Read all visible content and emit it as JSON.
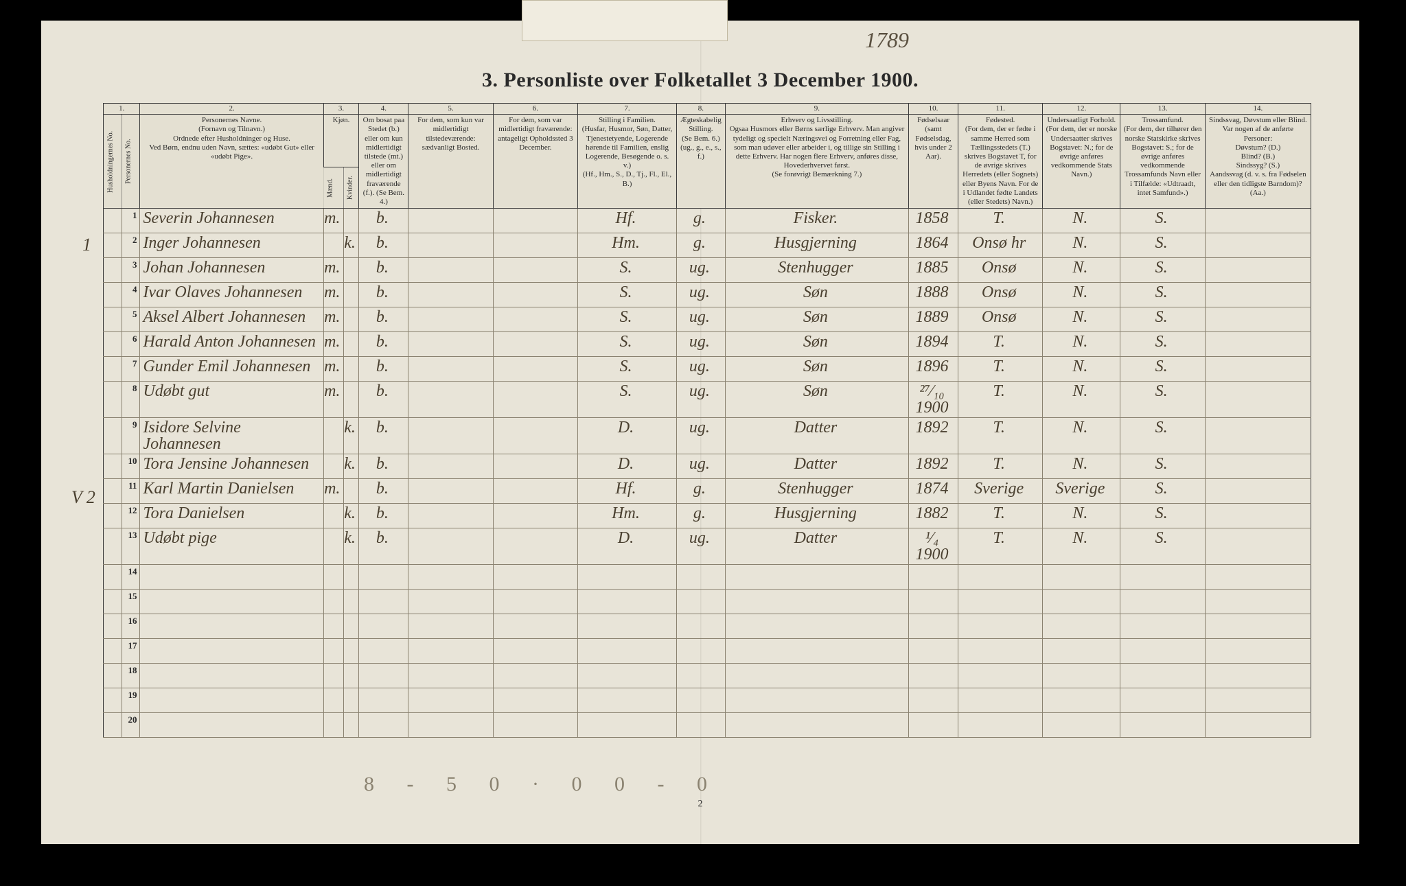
{
  "page": {
    "top_pagenum": "1789",
    "title": "3. Personliste over Folketallet 3 December 1900.",
    "foot_hand": "8 - 5   0 · 0   0 - 0",
    "foot_pagenum": "2"
  },
  "colors": {
    "paper": "#e8e4d8",
    "ink_print": "#2a2a2a",
    "ink_hand": "#4a4030",
    "rule_light": "#8a8270",
    "background": "#000000"
  },
  "columns": {
    "nums": [
      "1.",
      "2.",
      "3.",
      "4.",
      "5.",
      "6.",
      "7.",
      "8.",
      "9.",
      "10.",
      "11.",
      "12.",
      "13.",
      "14."
    ],
    "headers": {
      "c1": "Husholdningernes No.",
      "c1b": "Personernes No.",
      "c2": "Personernes Navne.\n(Fornavn og Tilnavn.)\nOrdnede efter Husholdninger og Huse.\nVed Børn, endnu uden Navn, sættes: «udøbt Gut» eller «udøbt Pige».",
      "c3": "Kjøn.",
      "c3m": "Mænd.",
      "c3k": "Kvinder.",
      "c4": "Om bosat paa Stedet (b.) eller om kun midlertidigt tilstede (mt.) eller om midlertidigt fraværende (f.). (Se Bem. 4.)",
      "c5": "For dem, som kun var midlertidigt tilstedeværende:\nsædvanligt Bosted.",
      "c6": "For dem, som var midlertidigt fraværende:\nantageligt Opholdssted 3 December.",
      "c7": "Stilling i Familien.\n(Husfar, Husmor, Søn, Datter, Tjenestetyende, Logerende hørende til Familien, enslig Logerende, Besøgende o. s. v.)\n(Hf., Hm., S., D., Tj., Fl., El., B.)",
      "c8": "Ægteskabelig Stilling.\n(Se Bem. 6.)\n(ug., g., e., s., f.)",
      "c9": "Erhverv og Livsstilling.\nOgsaa Husmors eller Børns særlige Erhverv. Man angiver tydeligt og specielt Næringsvei og Forretning eller Fag, som man udøver eller arbeider i, og tillige sin Stilling i dette Erhverv. Har nogen flere Erhverv, anføres disse, Hovederhvervet først.\n(Se forøvrigt Bemærkning 7.)",
      "c10": "Fødselsaar\n(samt Fødselsdag, hvis under 2 Aar).",
      "c11": "Fødested.\n(For dem, der er fødte i samme Herred som Tællingsstedets (T.) skrives Bogstavet T, for de øvrige skrives Herredets (eller Sognets) eller Byens Navn. For de i Udlandet fødte Landets (eller Stedets) Navn.)",
      "c12": "Undersaatligt Forhold.\n(For dem, der er norske Undersaatter skrives Bogstavet: N.; for de øvrige anføres vedkommende Stats Navn.)",
      "c13": "Trossamfund.\n(For dem, der tilhører den norske Statskirke skrives Bogstavet: S.; for de øvrige anføres vedkommende Trossamfunds Navn eller i Tilfælde: «Udtraadt, intet Samfund».)",
      "c14": "Sindssvag, Døvstum eller Blind.\nVar nogen af de anførte Personer:\nDøvstum? (D.)\nBlind? (B.)\nSindssyg? (S.)\nAandssvag (d. v. s. fra Fødselen eller den tidligste Barndom)? (Aa.)"
    }
  },
  "margin": {
    "r1": "1",
    "r11": "V 2"
  },
  "rows": [
    {
      "n": "1",
      "name": "Severin Johannesen",
      "m": "m.",
      "k": "",
      "res": "b.",
      "c5": "",
      "c6": "",
      "fam": "Hf.",
      "civ": "g.",
      "occ": "Fisker.",
      "yr": "1858",
      "bp": "T.",
      "nat": "N.",
      "rel": "S.",
      "dis": ""
    },
    {
      "n": "2",
      "name": "Inger Johannesen",
      "m": "",
      "k": "k.",
      "res": "b.",
      "c5": "",
      "c6": "",
      "fam": "Hm.",
      "civ": "g.",
      "occ": "Husgjerning",
      "yr": "1864",
      "bp": "Onsø hr",
      "nat": "N.",
      "rel": "S.",
      "dis": ""
    },
    {
      "n": "3",
      "name": "Johan Johannesen",
      "m": "m.",
      "k": "",
      "res": "b.",
      "c5": "",
      "c6": "",
      "fam": "S.",
      "civ": "ug.",
      "occ": "Stenhugger",
      "yr": "1885",
      "bp": "Onsø",
      "nat": "N.",
      "rel": "S.",
      "dis": ""
    },
    {
      "n": "4",
      "name": "Ivar Olaves Johannesen",
      "m": "m.",
      "k": "",
      "res": "b.",
      "c5": "",
      "c6": "",
      "fam": "S.",
      "civ": "ug.",
      "occ": "Søn",
      "yr": "1888",
      "bp": "Onsø",
      "nat": "N.",
      "rel": "S.",
      "dis": ""
    },
    {
      "n": "5",
      "name": "Aksel Albert Johannesen",
      "m": "m.",
      "k": "",
      "res": "b.",
      "c5": "",
      "c6": "",
      "fam": "S.",
      "civ": "ug.",
      "occ": "Søn",
      "yr": "1889",
      "bp": "Onsø",
      "nat": "N.",
      "rel": "S.",
      "dis": ""
    },
    {
      "n": "6",
      "name": "Harald Anton Johannesen",
      "m": "m.",
      "k": "",
      "res": "b.",
      "c5": "",
      "c6": "",
      "fam": "S.",
      "civ": "ug.",
      "occ": "Søn",
      "yr": "1894",
      "bp": "T.",
      "nat": "N.",
      "rel": "S.",
      "dis": ""
    },
    {
      "n": "7",
      "name": "Gunder Emil Johannesen",
      "m": "m.",
      "k": "",
      "res": "b.",
      "c5": "",
      "c6": "",
      "fam": "S.",
      "civ": "ug.",
      "occ": "Søn",
      "yr": "1896",
      "bp": "T.",
      "nat": "N.",
      "rel": "S.",
      "dis": ""
    },
    {
      "n": "8",
      "name": "Udøbt gut",
      "m": "m.",
      "k": "",
      "res": "b.",
      "c5": "",
      "c6": "",
      "fam": "S.",
      "civ": "ug.",
      "occ": "Søn",
      "yr": "²⁷⁄₁₀ 1900",
      "bp": "T.",
      "nat": "N.",
      "rel": "S.",
      "dis": ""
    },
    {
      "n": "9",
      "name": "Isidore Selvine Johannesen",
      "m": "",
      "k": "k.",
      "res": "b.",
      "c5": "",
      "c6": "",
      "fam": "D.",
      "civ": "ug.",
      "occ": "Datter",
      "yr": "1892",
      "bp": "T.",
      "nat": "N.",
      "rel": "S.",
      "dis": ""
    },
    {
      "n": "10",
      "name": "Tora Jensine Johannesen",
      "m": "",
      "k": "k.",
      "res": "b.",
      "c5": "",
      "c6": "",
      "fam": "D.",
      "civ": "ug.",
      "occ": "Datter",
      "yr": "1892",
      "bp": "T.",
      "nat": "N.",
      "rel": "S.",
      "dis": ""
    },
    {
      "n": "11",
      "name": "Karl Martin Danielsen",
      "m": "m.",
      "k": "",
      "res": "b.",
      "c5": "",
      "c6": "",
      "fam": "Hf.",
      "civ": "g.",
      "occ": "Stenhugger",
      "yr": "1874",
      "bp": "Sverige",
      "nat": "Sverige",
      "rel": "S.",
      "dis": ""
    },
    {
      "n": "12",
      "name": "Tora Danielsen",
      "m": "",
      "k": "k.",
      "res": "b.",
      "c5": "",
      "c6": "",
      "fam": "Hm.",
      "civ": "g.",
      "occ": "Husgjerning",
      "yr": "1882",
      "bp": "T.",
      "nat": "N.",
      "rel": "S.",
      "dis": ""
    },
    {
      "n": "13",
      "name": "Udøbt pige",
      "m": "",
      "k": "k.",
      "res": "b.",
      "c5": "",
      "c6": "",
      "fam": "D.",
      "civ": "ug.",
      "occ": "Datter",
      "yr": "¹⁄₄ 1900",
      "bp": "T.",
      "nat": "N.",
      "rel": "S.",
      "dis": ""
    },
    {
      "n": "14",
      "name": "",
      "m": "",
      "k": "",
      "res": "",
      "c5": "",
      "c6": "",
      "fam": "",
      "civ": "",
      "occ": "",
      "yr": "",
      "bp": "",
      "nat": "",
      "rel": "",
      "dis": ""
    },
    {
      "n": "15",
      "name": "",
      "m": "",
      "k": "",
      "res": "",
      "c5": "",
      "c6": "",
      "fam": "",
      "civ": "",
      "occ": "",
      "yr": "",
      "bp": "",
      "nat": "",
      "rel": "",
      "dis": ""
    },
    {
      "n": "16",
      "name": "",
      "m": "",
      "k": "",
      "res": "",
      "c5": "",
      "c6": "",
      "fam": "",
      "civ": "",
      "occ": "",
      "yr": "",
      "bp": "",
      "nat": "",
      "rel": "",
      "dis": ""
    },
    {
      "n": "17",
      "name": "",
      "m": "",
      "k": "",
      "res": "",
      "c5": "",
      "c6": "",
      "fam": "",
      "civ": "",
      "occ": "",
      "yr": "",
      "bp": "",
      "nat": "",
      "rel": "",
      "dis": ""
    },
    {
      "n": "18",
      "name": "",
      "m": "",
      "k": "",
      "res": "",
      "c5": "",
      "c6": "",
      "fam": "",
      "civ": "",
      "occ": "",
      "yr": "",
      "bp": "",
      "nat": "",
      "rel": "",
      "dis": ""
    },
    {
      "n": "19",
      "name": "",
      "m": "",
      "k": "",
      "res": "",
      "c5": "",
      "c6": "",
      "fam": "",
      "civ": "",
      "occ": "",
      "yr": "",
      "bp": "",
      "nat": "",
      "rel": "",
      "dis": ""
    },
    {
      "n": "20",
      "name": "",
      "m": "",
      "k": "",
      "res": "",
      "c5": "",
      "c6": "",
      "fam": "",
      "civ": "",
      "occ": "",
      "yr": "",
      "bp": "",
      "nat": "",
      "rel": "",
      "dis": ""
    }
  ]
}
